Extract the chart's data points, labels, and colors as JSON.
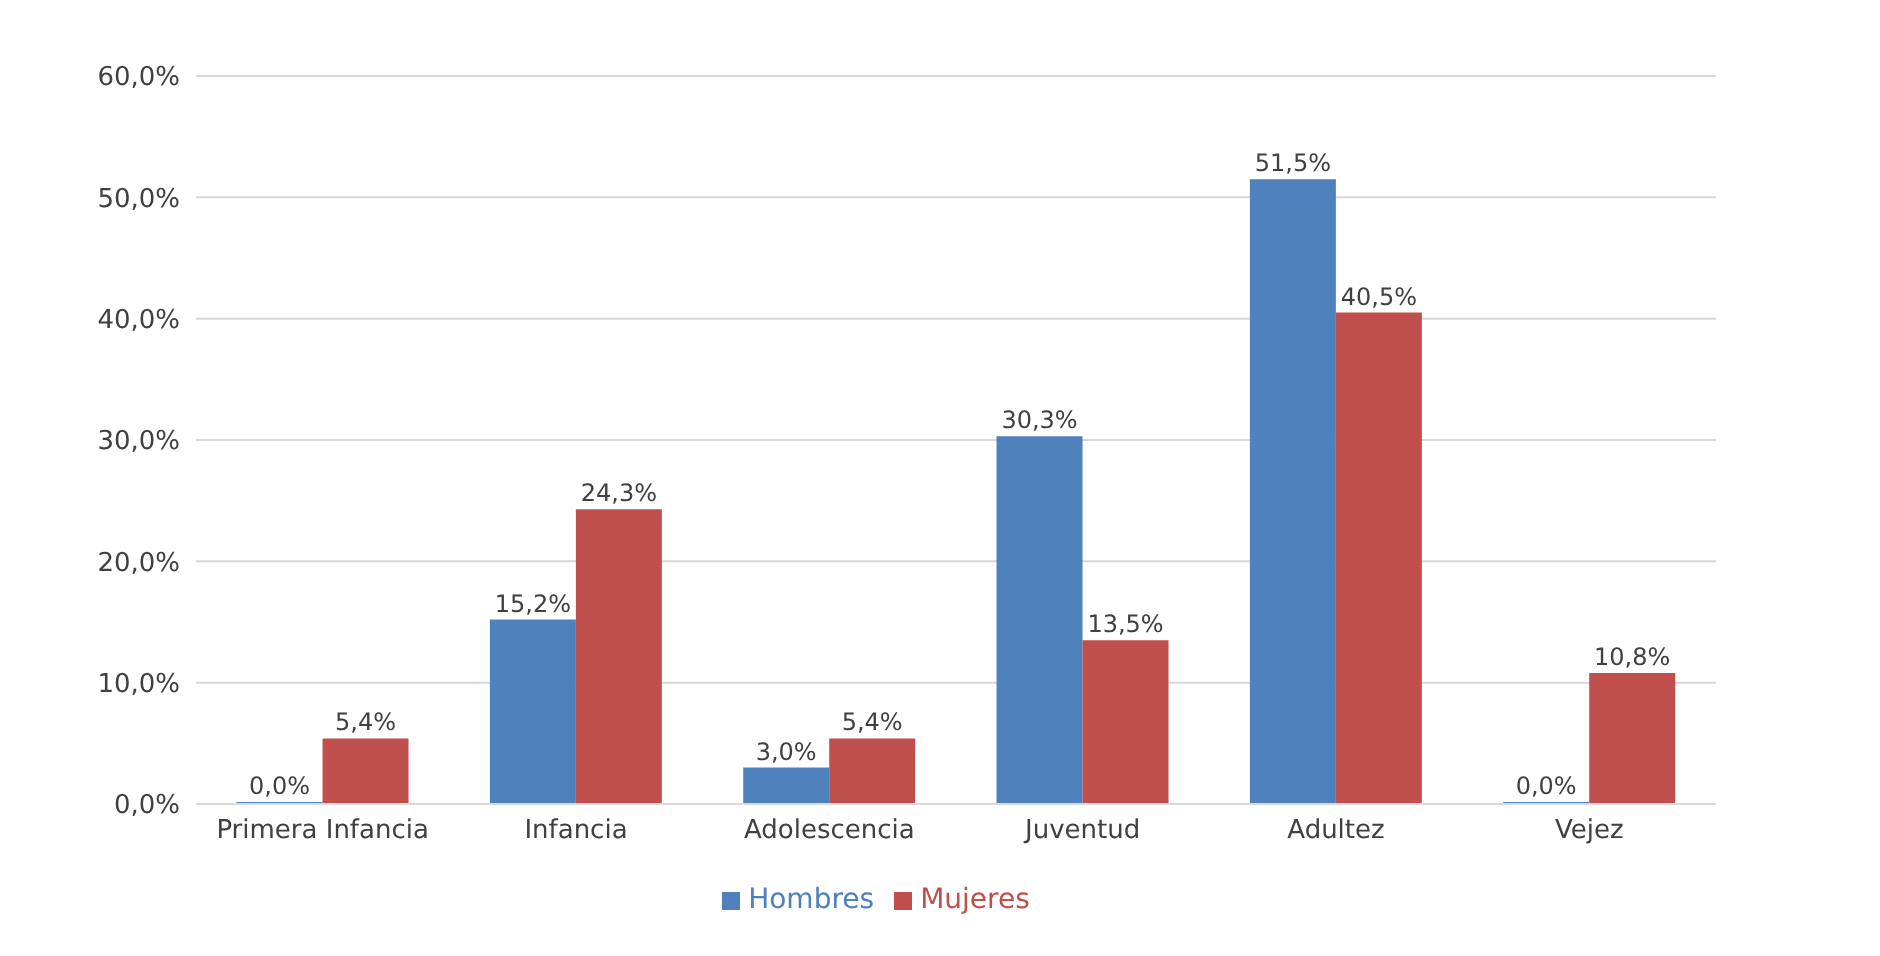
{
  "chart_data": {
    "type": "bar",
    "categories": [
      "Primera Infancia",
      "Infancia",
      "Adolescencia",
      "Juventud",
      "Adultez",
      "Vejez"
    ],
    "series": [
      {
        "name": "Hombres",
        "color": "#4f81bd",
        "values": [
          0.0,
          15.2,
          3.0,
          30.3,
          51.5,
          0.0
        ],
        "value_labels": [
          "0,0%",
          "15,2%",
          "3,0%",
          "30,3%",
          "51,5%",
          "0,0%"
        ]
      },
      {
        "name": "Mujeres",
        "color": "#c0504d",
        "values": [
          5.4,
          24.3,
          5.4,
          13.5,
          40.5,
          10.8
        ],
        "value_labels": [
          "5,4%",
          "24,3%",
          "5,4%",
          "13,5%",
          "40,5%",
          "10,8%"
        ]
      }
    ],
    "ylim": [
      0,
      60
    ],
    "yticks": [
      {
        "value": 0,
        "label": "0,0%"
      },
      {
        "value": 10,
        "label": "10,0%"
      },
      {
        "value": 20,
        "label": "20,0%"
      },
      {
        "value": 30,
        "label": "30,0%"
      },
      {
        "value": 40,
        "label": "40,0%"
      },
      {
        "value": 50,
        "label": "50,0%"
      },
      {
        "value": 60,
        "label": "60,0%"
      }
    ],
    "grid": "y",
    "legend": "bottom"
  }
}
